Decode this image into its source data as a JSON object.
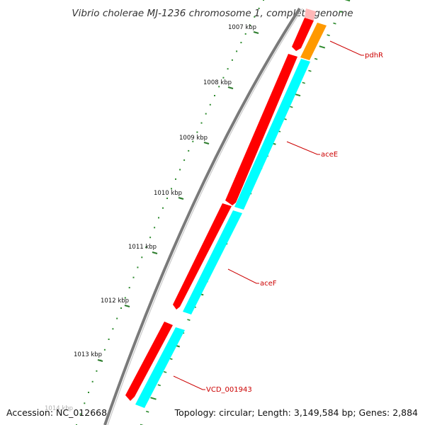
{
  "title": "Vibrio cholerae MJ-1236 chromosome 1, complete genome",
  "footer": {
    "accession": "Accession: NC_012668",
    "summary": "Topology: circular; Length: 3,149,584 bp; Genes: 2,884"
  },
  "colors": {
    "backbone": "#7a7a7a",
    "ticks": "#2e8b2e",
    "forward_gene": "#ff0000",
    "reverse_gene": "#00ffff",
    "pdhR_gene": "#ff9900",
    "label": "#cc0000"
  },
  "kbp_labels": [
    "1007 kbp",
    "1008 kbp",
    "1009 kbp",
    "1010 kbp",
    "1011 kbp",
    "1012 kbp",
    "1013 kbp",
    "1014 kbp"
  ],
  "genes": [
    {
      "name": "pdhR",
      "strand": "reverse"
    },
    {
      "name": "aceE",
      "strand": "both"
    },
    {
      "name": "aceF",
      "strand": "both"
    },
    {
      "name": "VCD_001943",
      "strand": "both"
    }
  ]
}
